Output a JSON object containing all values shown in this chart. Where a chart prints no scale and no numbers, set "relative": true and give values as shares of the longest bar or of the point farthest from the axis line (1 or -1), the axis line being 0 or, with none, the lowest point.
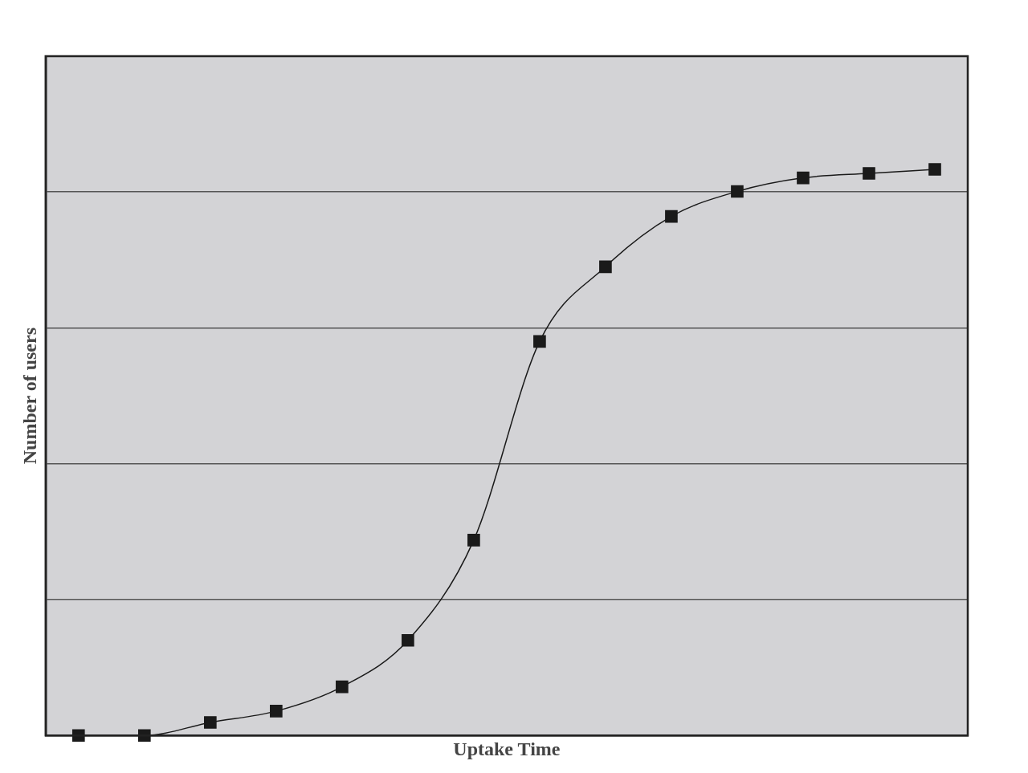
{
  "chart_data": {
    "type": "line",
    "relative": true,
    "xlabel": "Uptake Time",
    "ylabel": "Number of users",
    "categories": [
      null,
      null,
      null,
      null,
      null,
      null,
      null,
      null,
      null,
      null,
      null,
      null,
      null,
      null
    ],
    "series": [
      {
        "color": "#1a1a1a",
        "values": [
          0,
          0,
          0.023,
          0.043,
          0.086,
          0.168,
          0.345,
          0.696,
          0.828,
          0.917,
          0.961,
          0.985,
          0.993,
          1
        ]
      }
    ],
    "marker": "square",
    "grid": "y",
    "legend": false,
    "tick_labels": false
  }
}
